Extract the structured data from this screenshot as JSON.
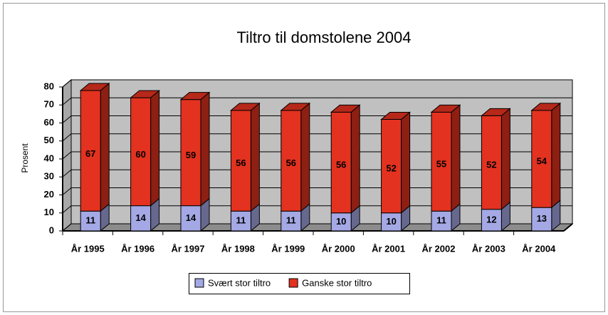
{
  "chart_data": {
    "type": "bar",
    "stacked": true,
    "three_d": true,
    "title": "Tiltro til domstolene 2004",
    "y_label": "Prosent",
    "categories": [
      "År 1995",
      "År 1996",
      "År 1997",
      "År 1998",
      "År 1999",
      "År 2000",
      "År 2001",
      "År 2002",
      "År 2003",
      "År 2004"
    ],
    "series": [
      {
        "name": "Svært stor tiltro",
        "color": "#a4a8e4",
        "values": [
          11,
          14,
          14,
          11,
          11,
          10,
          10,
          11,
          12,
          13
        ]
      },
      {
        "name": "Ganske stor tiltro",
        "color": "#e3321f",
        "values": [
          67,
          60,
          59,
          56,
          56,
          56,
          52,
          55,
          52,
          54
        ]
      }
    ],
    "ylim": [
      0,
      80
    ],
    "yticks": [
      0,
      10,
      20,
      30,
      40,
      50,
      60,
      70,
      80
    ],
    "grid": true,
    "legend": "bottom"
  }
}
